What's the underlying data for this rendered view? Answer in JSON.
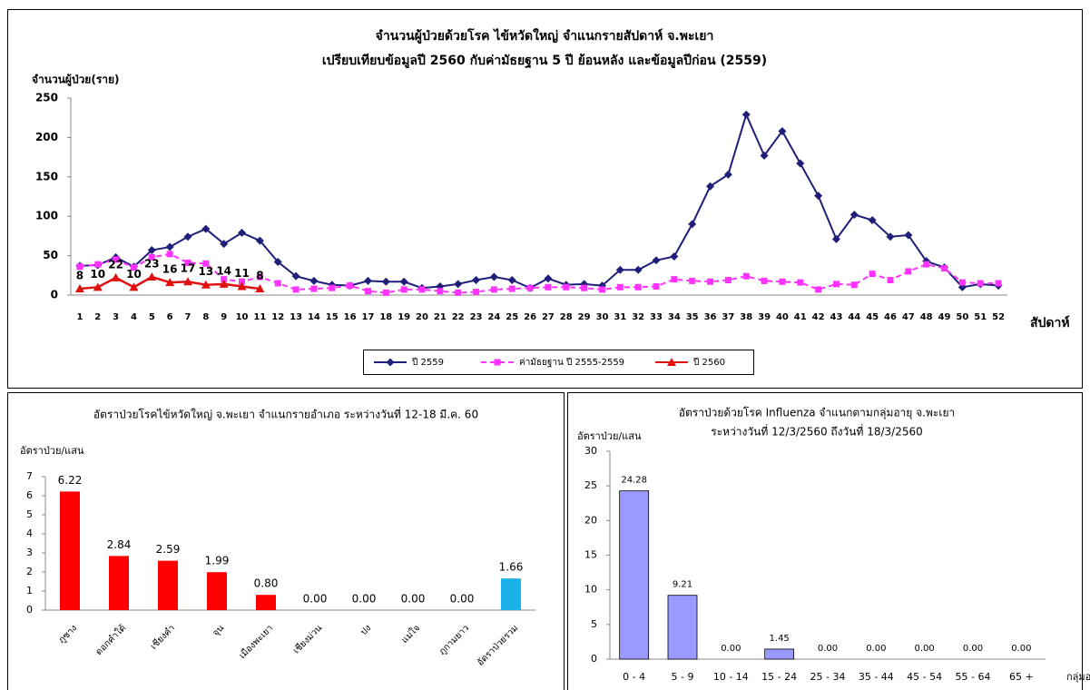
{
  "chart_data": [
    {
      "type": "line",
      "title": "จำนวนผู้ป่วยด้วยโรค  ไข้หวัดใหญ่  จำแนกรายสัปดาห์    จ.พะเยา",
      "subtitle": "เปรียบเทียบข้อมูลปี  2560  กับค่ามัธยฐาน 5 ปี ย้อนหลัง และข้อมูลปีก่อน (2559)",
      "y_label": "จำนวนผู้ป่วย(ราย)",
      "x_label": "สัปดาห์",
      "categories": [
        "1",
        "2",
        "3",
        "4",
        "5",
        "6",
        "7",
        "8",
        "9",
        "10",
        "11",
        "12",
        "13",
        "14",
        "15",
        "16",
        "17",
        "18",
        "19",
        "20",
        "21",
        "22",
        "23",
        "24",
        "25",
        "26",
        "27",
        "28",
        "29",
        "30",
        "31",
        "32",
        "33",
        "34",
        "35",
        "36",
        "37",
        "38",
        "39",
        "40",
        "41",
        "42",
        "43",
        "44",
        "45",
        "46",
        "47",
        "48",
        "49",
        "50",
        "51",
        "52"
      ],
      "ylim": [
        0,
        250
      ],
      "yticks": [
        0,
        50,
        100,
        150,
        200,
        250
      ],
      "legend": "bottom",
      "series": [
        {
          "name": "ปี 2559",
          "color": "#1f1f7a",
          "marker": "diamond",
          "linestyle": "solid",
          "values": [
            37,
            38,
            48,
            36,
            57,
            61,
            74,
            84,
            65,
            79,
            69,
            42,
            24,
            18,
            13,
            12,
            18,
            17,
            17,
            9,
            11,
            14,
            19,
            23,
            19,
            9,
            21,
            13,
            14,
            12,
            32,
            32,
            44,
            49,
            90,
            138,
            153,
            229,
            177,
            208,
            167,
            126,
            71,
            102,
            95,
            74,
            76,
            43,
            35,
            10,
            14,
            12
          ]
        },
        {
          "name": "ค่ามัธยฐาน ปี 2555-2559",
          "color": "#ff33ff",
          "marker": "square",
          "linestyle": "dashed",
          "values": [
            36,
            39,
            45,
            35,
            48,
            52,
            41,
            40,
            20,
            17,
            23,
            15,
            7,
            8,
            9,
            12,
            5,
            3,
            7,
            7,
            5,
            3,
            4,
            7,
            8,
            9,
            10,
            10,
            9,
            7,
            10,
            10,
            11,
            20,
            18,
            17,
            19,
            24,
            18,
            17,
            16,
            7,
            14,
            13,
            27,
            19,
            30,
            39,
            34,
            16,
            15,
            15
          ]
        },
        {
          "name": "ปี 2560",
          "color": "#e01010",
          "marker": "triangle",
          "linestyle": "solid",
          "show_labels": true,
          "values": [
            8,
            10,
            22,
            10,
            23,
            16,
            17,
            13,
            14,
            11,
            8,
            null,
            null,
            null,
            null,
            null,
            null,
            null,
            null,
            null,
            null,
            null,
            null,
            null,
            null,
            null,
            null,
            null,
            null,
            null,
            null,
            null,
            null,
            null,
            null,
            null,
            null,
            null,
            null,
            null,
            null,
            null,
            null,
            null,
            null,
            null,
            null,
            null,
            null,
            null,
            null,
            null
          ]
        }
      ]
    },
    {
      "type": "bar",
      "title": "อัตราป่วยโรคไข้หวัดใหญ่ จ.พะเยา จำแนกรายอำเภอ ระหว่างวันที่ 12-18 มี.ค. 60",
      "y_label": "อัตราป่วย/แสน",
      "categories": [
        "ภูซาง",
        "ดอกคำใต้",
        "เชียงคำ",
        "จุน",
        "เมืองพะเยา",
        "เชียงม่วน",
        "ปง",
        "แม่ใจ",
        "ภูกามยาว",
        "อัตราป่วยรวม"
      ],
      "values": [
        6.22,
        2.84,
        2.59,
        1.99,
        0.8,
        0,
        0,
        0,
        0,
        1.66
      ],
      "value_labels": [
        "6.22",
        "2.84",
        "2.59",
        "1.99",
        "0.80",
        "0.00",
        "0.00",
        "0.00",
        "0.00",
        "1.66"
      ],
      "colors": [
        "#ff0000",
        "#ff0000",
        "#ff0000",
        "#ff0000",
        "#ff0000",
        "#ff0000",
        "#ff0000",
        "#ff0000",
        "#ff0000",
        "#1ab2e8"
      ],
      "ylim": [
        0,
        7
      ],
      "yticks": [
        0,
        1,
        2,
        3,
        4,
        5,
        6,
        7
      ]
    },
    {
      "type": "bar",
      "title": "อัตราป่วยด้วยโรค Influenza  จำแนกตามกลุ่มอายุ   จ.พะเยา",
      "subtitle": "ระหว่างวันที่  12/3/2560  ถึงวันที่  18/3/2560",
      "y_label": "อัตราป่วย/แสน",
      "x_label": "กลุ่มอายุ",
      "categories": [
        "0 - 4",
        "5 - 9",
        "10 - 14",
        "15 - 24",
        "25 - 34",
        "35 - 44",
        "45 - 54",
        "55 - 64",
        "65 +"
      ],
      "values": [
        24.28,
        9.21,
        0,
        1.45,
        0,
        0,
        0,
        0,
        0
      ],
      "value_labels": [
        "24.28",
        "9.21",
        "0.00",
        "1.45",
        "0.00",
        "0.00",
        "0.00",
        "0.00",
        "0.00"
      ],
      "color": "#9999ff",
      "ylim": [
        0,
        30
      ],
      "yticks": [
        0,
        5,
        10,
        15,
        20,
        25,
        30
      ]
    }
  ]
}
